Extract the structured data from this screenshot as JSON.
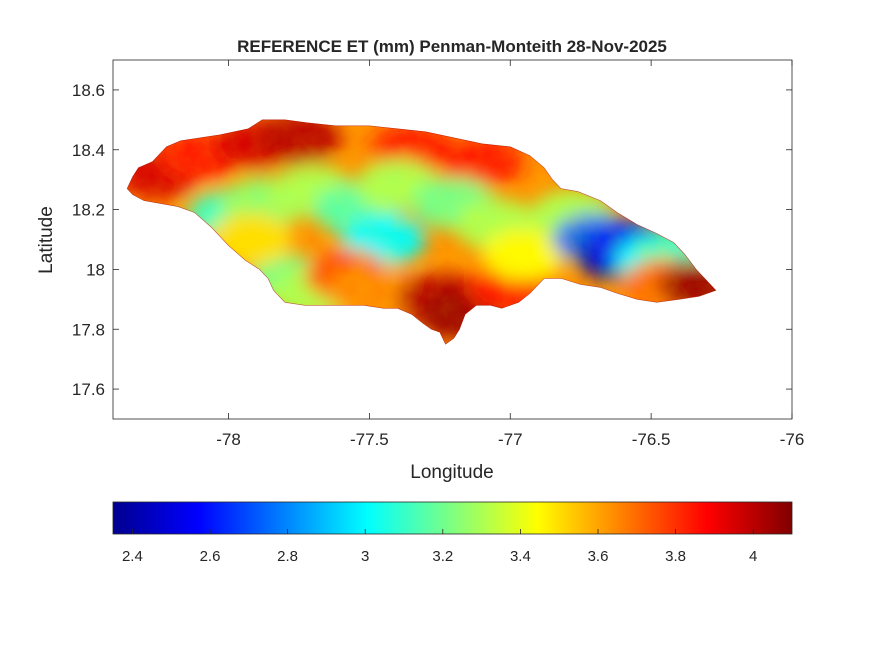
{
  "chart_data": {
    "type": "heatmap",
    "title": "REFERENCE ET (mm) Penman-Monteith 28-Nov-2025",
    "xlabel": "Longitude",
    "ylabel": "Latitude",
    "xlim": [
      -78.41,
      -76.0
    ],
    "ylim": [
      17.5,
      18.7
    ],
    "xticks": [
      -78,
      -77.5,
      -77,
      -76.5,
      -76
    ],
    "xtick_labels": [
      "-78",
      "-77.5",
      "-77",
      "-76.5",
      "-76"
    ],
    "yticks": [
      17.6,
      17.8,
      18,
      18.2,
      18.4,
      18.6
    ],
    "ytick_labels": [
      "17.6",
      "17.8",
      "18",
      "18.2",
      "18.4",
      "18.6"
    ],
    "colormap": "jet",
    "clim": [
      2.35,
      4.1
    ],
    "colorbar": {
      "location": "bottom",
      "ticks": [
        2.4,
        2.6,
        2.8,
        3,
        3.2,
        3.4,
        3.6,
        3.8,
        4
      ],
      "tick_labels": [
        "2.4",
        "2.6",
        "2.8",
        "3",
        "3.2",
        "3.4",
        "3.6",
        "3.8",
        "4"
      ]
    },
    "grid": false,
    "land_outline": [
      [
        -78.36,
        18.27
      ],
      [
        -78.34,
        18.31
      ],
      [
        -78.32,
        18.34
      ],
      [
        -78.27,
        18.36
      ],
      [
        -78.22,
        18.41
      ],
      [
        -78.17,
        18.43
      ],
      [
        -78.1,
        18.44
      ],
      [
        -78.03,
        18.45
      ],
      [
        -77.98,
        18.46
      ],
      [
        -77.93,
        18.47
      ],
      [
        -77.88,
        18.5
      ],
      [
        -77.8,
        18.5
      ],
      [
        -77.72,
        18.49
      ],
      [
        -77.62,
        18.48
      ],
      [
        -77.5,
        18.48
      ],
      [
        -77.4,
        18.47
      ],
      [
        -77.3,
        18.46
      ],
      [
        -77.2,
        18.44
      ],
      [
        -77.1,
        18.42
      ],
      [
        -77.0,
        18.41
      ],
      [
        -76.93,
        18.38
      ],
      [
        -76.88,
        18.34
      ],
      [
        -76.85,
        18.3
      ],
      [
        -76.82,
        18.27
      ],
      [
        -76.76,
        18.26
      ],
      [
        -76.68,
        18.23
      ],
      [
        -76.62,
        18.19
      ],
      [
        -76.55,
        18.15
      ],
      [
        -76.48,
        18.12
      ],
      [
        -76.42,
        18.09
      ],
      [
        -76.38,
        18.05
      ],
      [
        -76.34,
        18.0
      ],
      [
        -76.3,
        17.96
      ],
      [
        -76.27,
        17.93
      ],
      [
        -76.33,
        17.91
      ],
      [
        -76.4,
        17.9
      ],
      [
        -76.48,
        17.89
      ],
      [
        -76.55,
        17.9
      ],
      [
        -76.62,
        17.92
      ],
      [
        -76.68,
        17.94
      ],
      [
        -76.75,
        17.95
      ],
      [
        -76.82,
        17.97
      ],
      [
        -76.88,
        17.97
      ],
      [
        -76.93,
        17.92
      ],
      [
        -76.97,
        17.89
      ],
      [
        -77.03,
        17.87
      ],
      [
        -77.07,
        17.88
      ],
      [
        -77.12,
        17.88
      ],
      [
        -77.16,
        17.85
      ],
      [
        -77.18,
        17.8
      ],
      [
        -77.2,
        17.77
      ],
      [
        -77.23,
        17.75
      ],
      [
        -77.25,
        17.79
      ],
      [
        -77.28,
        17.8
      ],
      [
        -77.31,
        17.82
      ],
      [
        -77.35,
        17.85
      ],
      [
        -77.4,
        17.87
      ],
      [
        -77.45,
        17.87
      ],
      [
        -77.52,
        17.88
      ],
      [
        -77.6,
        17.88
      ],
      [
        -77.66,
        17.88
      ],
      [
        -77.73,
        17.88
      ],
      [
        -77.8,
        17.89
      ],
      [
        -77.84,
        17.93
      ],
      [
        -77.86,
        17.97
      ],
      [
        -77.89,
        18.0
      ],
      [
        -77.94,
        18.03
      ],
      [
        -78.0,
        18.08
      ],
      [
        -78.06,
        18.14
      ],
      [
        -78.12,
        18.19
      ],
      [
        -78.18,
        18.21
      ],
      [
        -78.24,
        18.22
      ],
      [
        -78.3,
        18.23
      ],
      [
        -78.34,
        18.25
      ]
    ],
    "value_zones": [
      {
        "lon": -78.25,
        "lat": 18.32,
        "value": 3.95
      },
      {
        "lon": -78.1,
        "lat": 18.38,
        "value": 3.85
      },
      {
        "lon": -77.9,
        "lat": 18.42,
        "value": 3.95
      },
      {
        "lon": -77.75,
        "lat": 18.44,
        "value": 4.0
      },
      {
        "lon": -77.35,
        "lat": 18.4,
        "value": 3.85
      },
      {
        "lon": -77.1,
        "lat": 18.36,
        "value": 3.85
      },
      {
        "lon": -78.0,
        "lat": 18.18,
        "value": 3.1
      },
      {
        "lon": -77.88,
        "lat": 18.22,
        "value": 3.25
      },
      {
        "lon": -77.7,
        "lat": 18.26,
        "value": 3.3
      },
      {
        "lon": -77.55,
        "lat": 18.2,
        "value": 3.15
      },
      {
        "lon": -77.45,
        "lat": 18.1,
        "value": 3.0
      },
      {
        "lon": -77.4,
        "lat": 18.28,
        "value": 3.3
      },
      {
        "lon": -77.2,
        "lat": 18.22,
        "value": 3.2
      },
      {
        "lon": -77.05,
        "lat": 18.15,
        "value": 3.3
      },
      {
        "lon": -77.78,
        "lat": 17.96,
        "value": 3.2
      },
      {
        "lon": -77.7,
        "lat": 17.92,
        "value": 3.3
      },
      {
        "lon": -77.92,
        "lat": 18.1,
        "value": 3.5
      },
      {
        "lon": -77.58,
        "lat": 17.98,
        "value": 3.75
      },
      {
        "lon": -77.5,
        "lat": 17.93,
        "value": 3.65
      },
      {
        "lon": -77.25,
        "lat": 17.9,
        "value": 4.0
      },
      {
        "lon": -77.18,
        "lat": 17.85,
        "value": 4.05
      },
      {
        "lon": -77.0,
        "lat": 17.94,
        "value": 3.85
      },
      {
        "lon": -76.95,
        "lat": 18.05,
        "value": 3.45
      },
      {
        "lon": -76.78,
        "lat": 18.18,
        "value": 3.3
      },
      {
        "lon": -76.7,
        "lat": 18.1,
        "value": 2.75
      },
      {
        "lon": -76.62,
        "lat": 18.05,
        "value": 2.4
      },
      {
        "lon": -76.58,
        "lat": 18.08,
        "value": 2.6
      },
      {
        "lon": -76.48,
        "lat": 18.03,
        "value": 3.0
      },
      {
        "lon": -76.4,
        "lat": 18.05,
        "value": 3.1
      },
      {
        "lon": -76.45,
        "lat": 17.95,
        "value": 3.7
      },
      {
        "lon": -76.32,
        "lat": 17.95,
        "value": 4.05
      }
    ]
  }
}
